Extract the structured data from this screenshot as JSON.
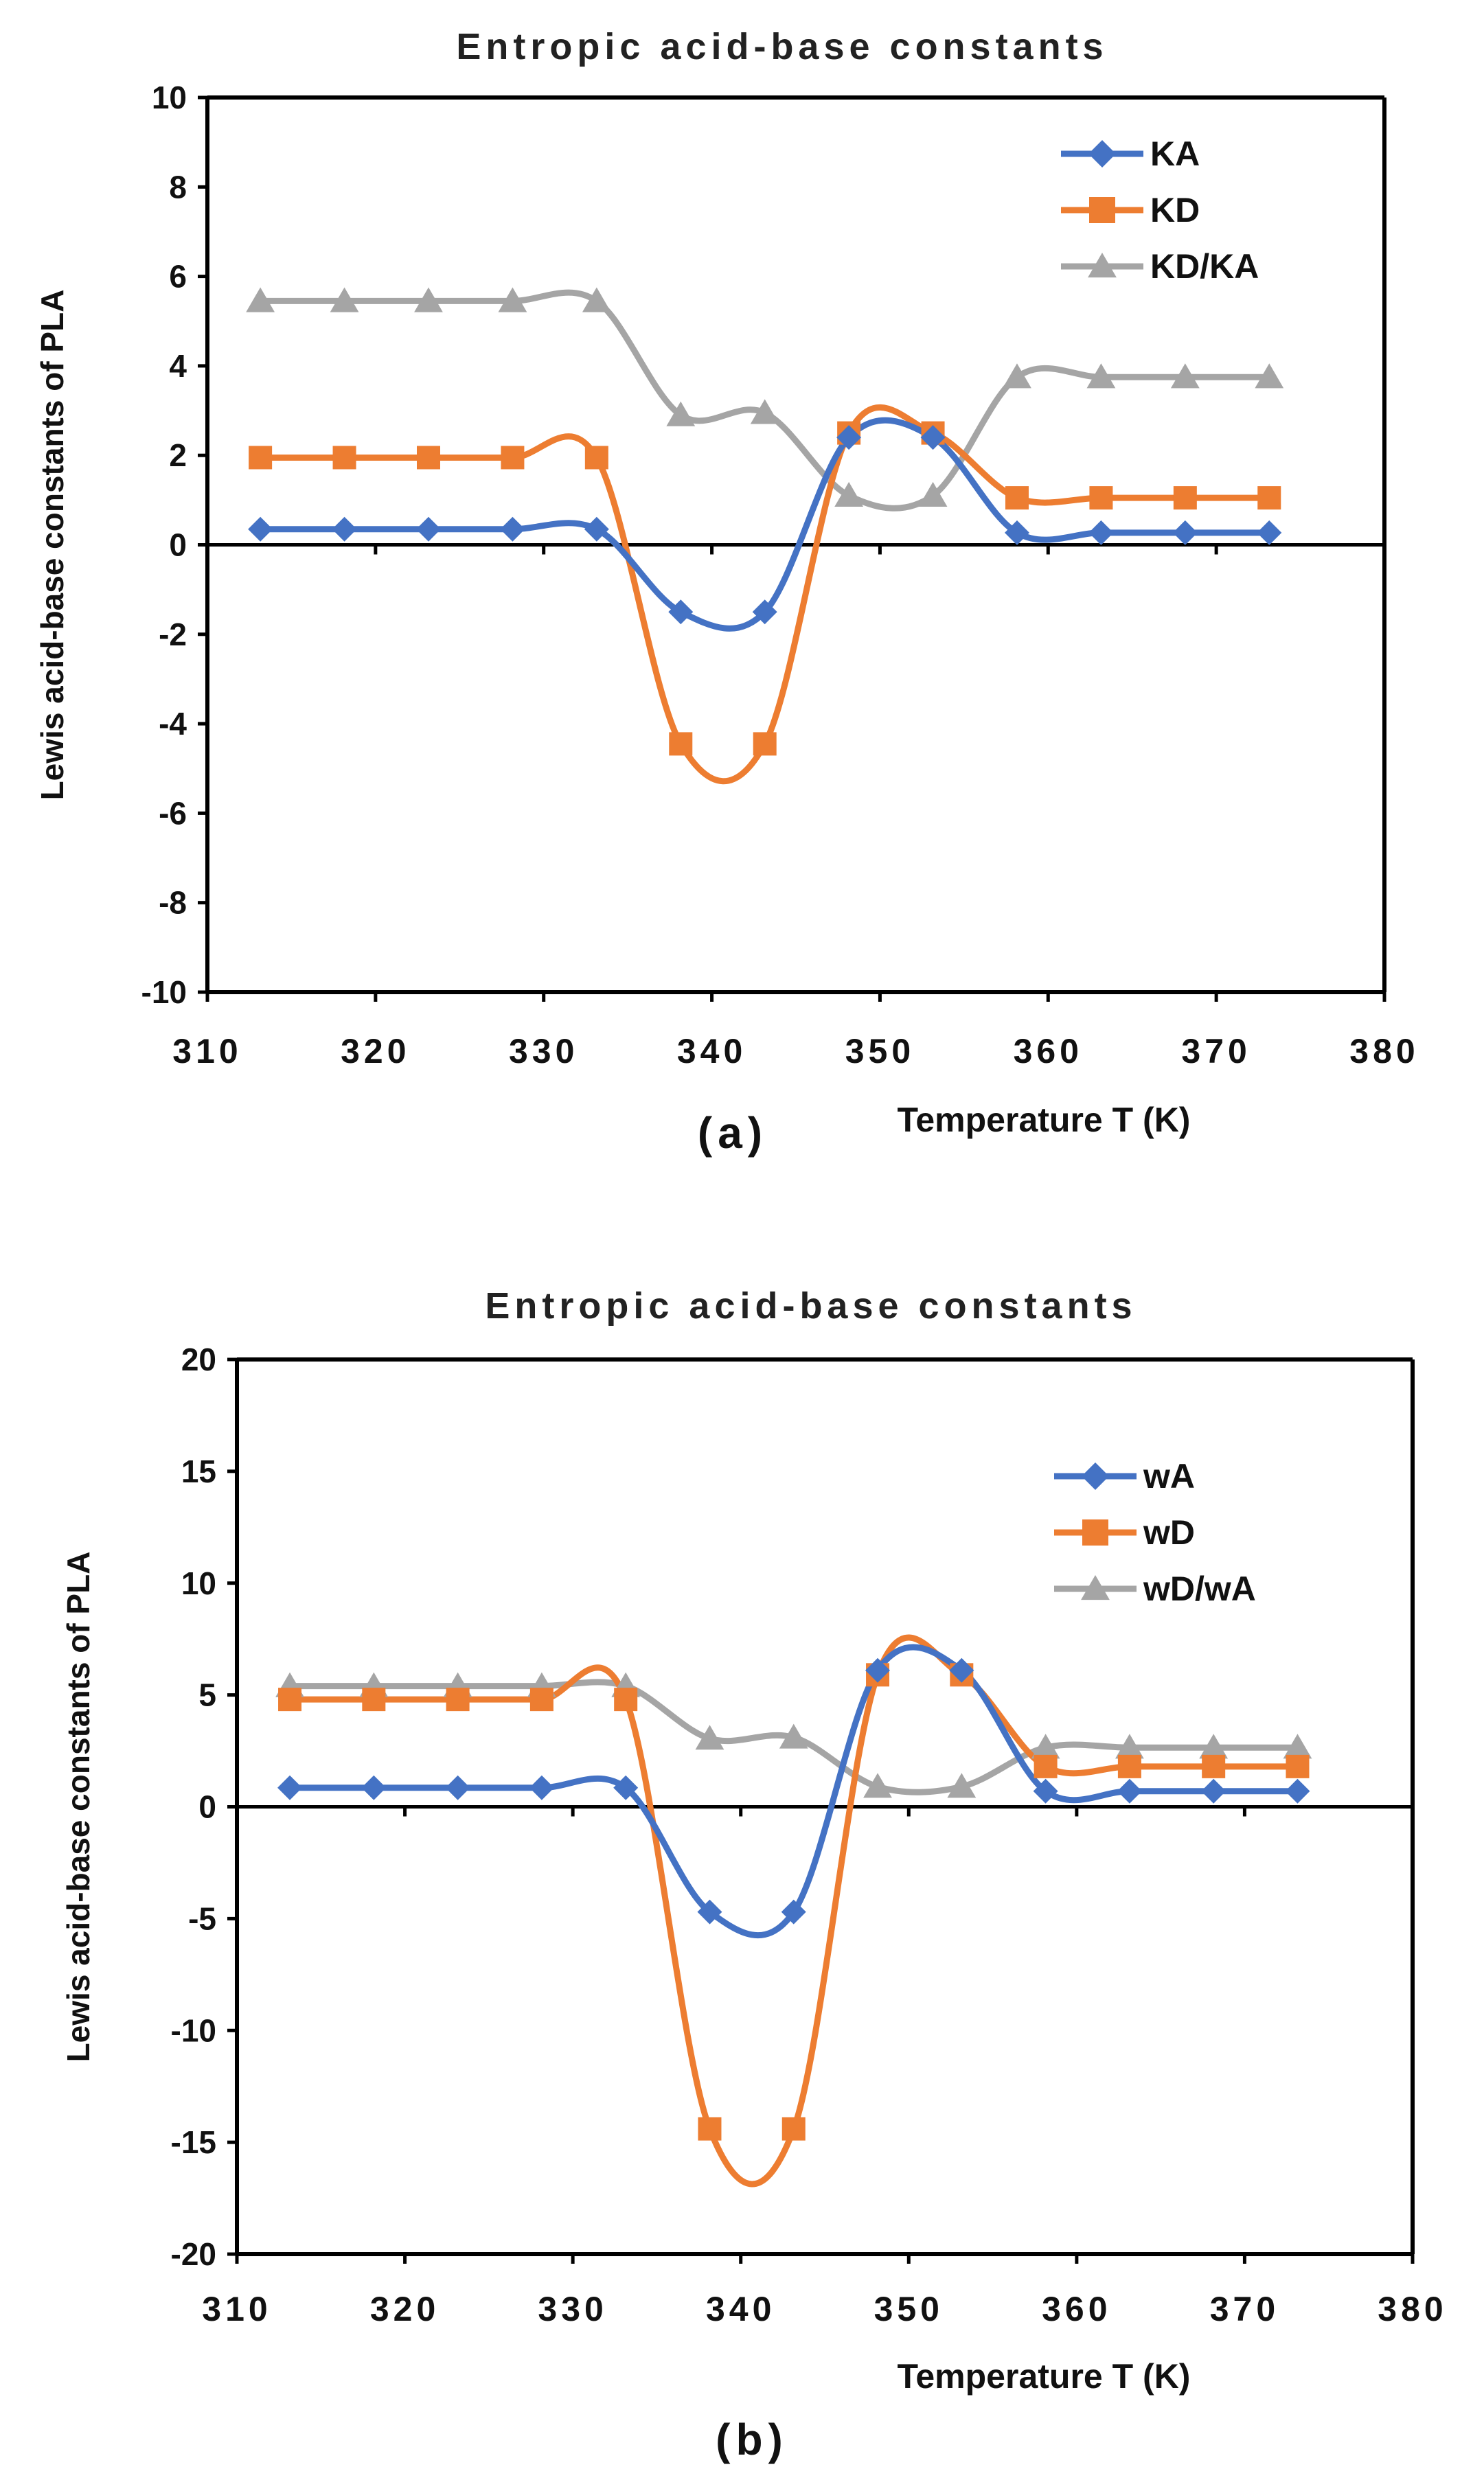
{
  "chart_data": [
    {
      "type": "line",
      "title": "Entropic acid-base constants",
      "xlabel": "Temperature T (K)",
      "ylabel": "Lewis acid-base constants of PLA",
      "panel_label": "(a)",
      "xlim": [
        310,
        380
      ],
      "ylim": [
        -10,
        10
      ],
      "xticks": [
        310,
        320,
        330,
        340,
        350,
        360,
        370,
        380
      ],
      "yticks": [
        -10,
        -8,
        -6,
        -4,
        -2,
        0,
        2,
        4,
        6,
        8,
        10
      ],
      "legend_position": "top-right",
      "x": [
        313.15,
        318.15,
        323.15,
        328.15,
        333.15,
        338.15,
        343.15,
        348.15,
        353.15,
        358.15,
        363.15,
        368.15,
        373.15
      ],
      "series": [
        {
          "name": "KA",
          "color": "#4472C4",
          "marker": "diamond",
          "values": [
            0.35,
            0.35,
            0.35,
            0.35,
            0.35,
            -1.5,
            -1.5,
            2.4,
            2.4,
            0.27,
            0.27,
            0.27,
            0.27
          ]
        },
        {
          "name": "KD",
          "color": "#ED7D31",
          "marker": "square",
          "values": [
            1.95,
            1.95,
            1.95,
            1.95,
            1.95,
            -4.45,
            -4.45,
            2.5,
            2.5,
            1.05,
            1.05,
            1.05,
            1.05
          ]
        },
        {
          "name": "KD/KA",
          "color": "#A5A5A5",
          "marker": "triangle",
          "values": [
            5.45,
            5.45,
            5.45,
            5.45,
            5.45,
            2.9,
            2.95,
            1.1,
            1.1,
            3.75,
            3.75,
            3.75,
            3.75
          ]
        }
      ]
    },
    {
      "type": "line",
      "title": "Entropic acid-base constants",
      "xlabel": "Temperature T (K)",
      "ylabel": "Lewis acid-base constants of PLA",
      "panel_label": "(b)",
      "xlim": [
        310,
        380
      ],
      "ylim": [
        -20,
        20
      ],
      "xticks": [
        310,
        320,
        330,
        340,
        350,
        360,
        370,
        380
      ],
      "yticks": [
        -20,
        -15,
        -10,
        -5,
        0,
        5,
        10,
        15,
        20
      ],
      "legend_position": "top-right",
      "x": [
        313.15,
        318.15,
        323.15,
        328.15,
        333.15,
        338.15,
        343.15,
        348.15,
        353.15,
        358.15,
        363.15,
        368.15,
        373.15
      ],
      "series": [
        {
          "name": "wA",
          "color": "#4472C4",
          "marker": "diamond",
          "values": [
            0.85,
            0.85,
            0.85,
            0.85,
            0.85,
            -4.7,
            -4.7,
            6.1,
            6.1,
            0.7,
            0.7,
            0.7,
            0.7
          ]
        },
        {
          "name": "wD",
          "color": "#ED7D31",
          "marker": "square",
          "values": [
            4.8,
            4.8,
            4.8,
            4.8,
            4.8,
            -14.4,
            -14.4,
            5.9,
            5.9,
            1.8,
            1.8,
            1.8,
            1.8
          ]
        },
        {
          "name": "wD/wA",
          "color": "#A5A5A5",
          "marker": "triangle",
          "values": [
            5.4,
            5.4,
            5.4,
            5.4,
            5.4,
            3.05,
            3.1,
            0.9,
            0.9,
            2.65,
            2.65,
            2.65,
            2.65
          ]
        }
      ]
    }
  ]
}
